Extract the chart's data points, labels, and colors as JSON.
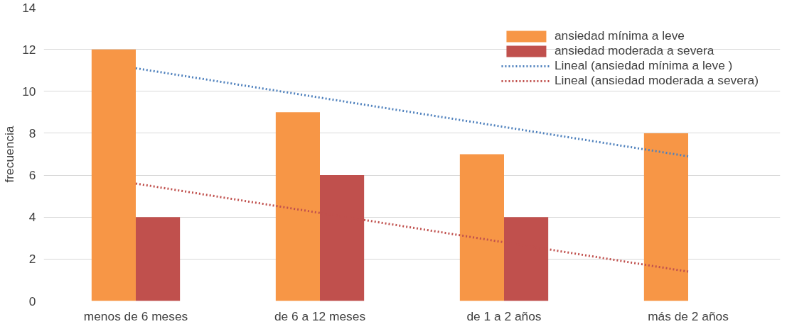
{
  "chart_data": {
    "type": "bar",
    "ylabel": "frecuencia",
    "categories": [
      "menos de 6 meses",
      "de 6 a 12 meses",
      "de 1 a 2 años",
      "más de 2 años"
    ],
    "series": [
      {
        "name": "ansiedad mínima a leve",
        "color": "#f79646",
        "values": [
          12,
          9,
          7,
          8
        ]
      },
      {
        "name": "ansiedad moderada a severa",
        "color": "#c0504d",
        "values": [
          4,
          6,
          4,
          0
        ]
      },
      {
        "name": "Lineal (ansiedad mínima a leve )",
        "type": "line",
        "line_style": "dotted",
        "color": "#4f81bd",
        "values": [
          11.1,
          9.7,
          8.3,
          6.9
        ]
      },
      {
        "name": "Lineal (ansiedad moderada a severa)",
        "type": "line",
        "line_style": "dotted",
        "color": "#c0504d",
        "values": [
          5.6,
          4.2,
          2.8,
          1.4
        ]
      }
    ],
    "ylim": [
      0,
      14
    ],
    "yticks": [
      0,
      2,
      4,
      6,
      8,
      10,
      12,
      14
    ],
    "grid": "y",
    "legend": "top right"
  }
}
